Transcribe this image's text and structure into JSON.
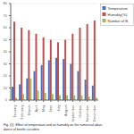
{
  "chart_data": {
    "type": "bar",
    "title": "Fig. (5)  Effect of temperature and air humidity on the numerical abun-\ndance of beetle cucurbits",
    "categories": [
      "January",
      "February",
      "March",
      "April",
      "May",
      "June",
      "July",
      "August",
      "September",
      "October",
      "November",
      "December"
    ],
    "series": [
      {
        "name": "Temperature",
        "color": "#4472c4",
        "values": [
          11,
          13,
          18,
          24,
          29,
          33,
          35,
          34,
          30,
          24,
          17,
          12
        ]
      },
      {
        "name": "Humidity(%)",
        "color": "#c0504d",
        "values": [
          65,
          60,
          58,
          55,
          52,
          50,
          48,
          50,
          55,
          60,
          63,
          66
        ]
      },
      {
        "name": "Number of B.",
        "color": "#9bbb59",
        "values": [
          2,
          5,
          18,
          8,
          6,
          5,
          4,
          4,
          4,
          4,
          3,
          2
        ]
      }
    ],
    "ylim": [
      0,
      80
    ],
    "yticks": [
      0,
      10,
      20,
      30,
      40,
      50,
      60,
      70,
      80
    ],
    "grid": true,
    "legend": "right"
  }
}
